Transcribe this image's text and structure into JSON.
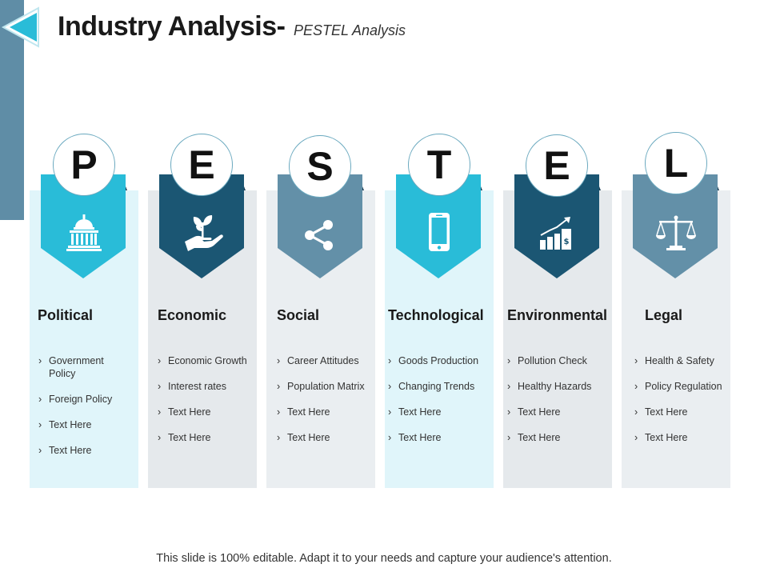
{
  "title": {
    "main": "Industry Analysis-",
    "sub": "PESTEL Analysis"
  },
  "columns": [
    {
      "letter": "P",
      "heading": "Political",
      "icon": "capitol-building-icon",
      "tag_color": "#29bcd8",
      "panel_color": "#e0f5fa",
      "items": [
        "Government Policy",
        "Foreign Policy",
        "Text Here",
        "Text Here"
      ]
    },
    {
      "letter": "E",
      "heading": "Economic",
      "icon": "plant-in-hand-icon",
      "tag_color": "#1b5673",
      "panel_color": "#e5e9ec",
      "items": [
        "Economic Growth",
        "Interest rates",
        "Text Here",
        "Text Here"
      ]
    },
    {
      "letter": "S",
      "heading": "Social",
      "icon": "share-nodes-icon",
      "tag_color": "#6390a8",
      "panel_color": "#eaeef1",
      "items": [
        "Career Attitudes",
        "Population Matrix",
        "Text Here",
        "Text Here"
      ]
    },
    {
      "letter": "T",
      "heading": "Technological",
      "icon": "smartphone-icon",
      "tag_color": "#29bcd8",
      "panel_color": "#e0f5fa",
      "items": [
        "Goods Production",
        "Changing Trends",
        "Text Here",
        "Text Here"
      ]
    },
    {
      "letter": "E",
      "heading": "Environmental",
      "icon": "growth-chart-icon",
      "tag_color": "#1b5673",
      "panel_color": "#e5e9ec",
      "items": [
        "Pollution Check",
        "Healthy Hazards",
        "Text Here",
        "Text Here"
      ]
    },
    {
      "letter": "L",
      "heading": "Legal",
      "icon": "scales-of-justice-icon",
      "tag_color": "#6390a8",
      "panel_color": "#eaeef1",
      "items": [
        "Health & Safety",
        "Policy Regulation",
        "Text Here",
        "Text Here"
      ]
    }
  ],
  "footer": "This slide is 100% editable. Adapt it to your needs and capture your audience's attention."
}
